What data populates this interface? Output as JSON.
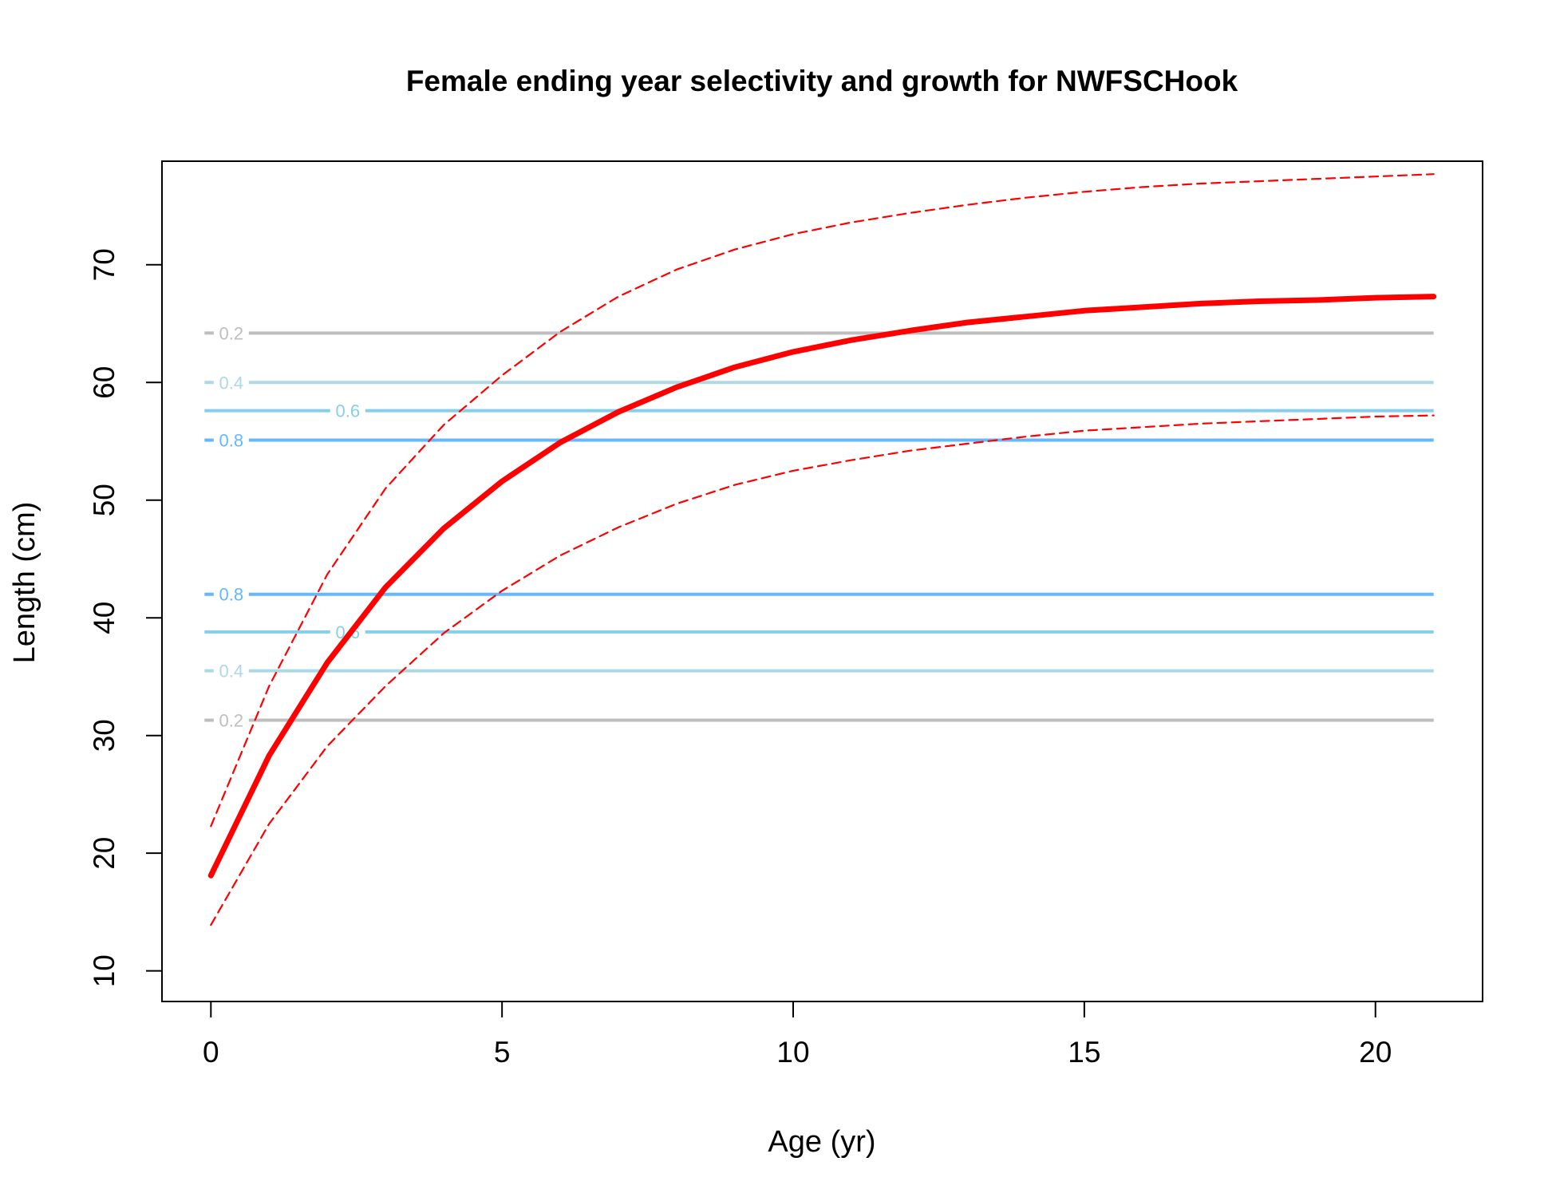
{
  "chart_data": {
    "type": "line",
    "title": "Female ending year selectivity and growth for NWFSCHook",
    "xlabel": "Age (yr)",
    "ylabel": "Length (cm)",
    "xlim": [
      -0.84,
      21.84
    ],
    "ylim": [
      7.4,
      78.8
    ],
    "xticks": [
      0,
      5,
      10,
      15,
      20
    ],
    "yticks": [
      10,
      20,
      30,
      40,
      50,
      60,
      70
    ],
    "grid": false,
    "legend": "none",
    "series": [
      {
        "role": "mean",
        "color": "#ff0000",
        "style": "solid-thick",
        "x": [
          0,
          1,
          2,
          3,
          4,
          5,
          6,
          7,
          8,
          9,
          10,
          11,
          12,
          13,
          14,
          15,
          16,
          17,
          18,
          19,
          20,
          21
        ],
        "values": [
          18.1,
          28.3,
          36.2,
          42.6,
          47.6,
          51.6,
          54.9,
          57.5,
          59.6,
          61.3,
          62.6,
          63.6,
          64.4,
          65.1,
          65.6,
          66.1,
          66.4,
          66.7,
          66.9,
          67.0,
          67.2,
          67.3
        ]
      },
      {
        "role": "upper",
        "color": "#ff0000",
        "style": "dashed",
        "x": [
          0,
          1,
          2,
          3,
          4,
          5,
          6,
          7,
          8,
          9,
          10,
          11,
          12,
          13,
          14,
          15,
          16,
          17,
          18,
          19,
          20,
          21
        ],
        "values": [
          22.3,
          34.2,
          43.7,
          51.0,
          56.4,
          60.6,
          64.3,
          67.3,
          69.6,
          71.3,
          72.6,
          73.6,
          74.4,
          75.1,
          75.7,
          76.2,
          76.6,
          76.9,
          77.1,
          77.3,
          77.5,
          77.7
        ]
      },
      {
        "role": "lower",
        "color": "#ff0000",
        "style": "dashed",
        "x": [
          0,
          1,
          2,
          3,
          4,
          5,
          6,
          7,
          8,
          9,
          10,
          11,
          12,
          13,
          14,
          15,
          16,
          17,
          18,
          19,
          20,
          21
        ],
        "values": [
          13.9,
          22.5,
          29.1,
          34.2,
          38.7,
          42.3,
          45.3,
          47.7,
          49.7,
          51.3,
          52.5,
          53.4,
          54.2,
          54.8,
          55.4,
          55.9,
          56.2,
          56.5,
          56.7,
          56.9,
          57.1,
          57.2
        ]
      }
    ],
    "selectivity_contours": [
      {
        "label": "0.2",
        "y": 64.2,
        "color": "#bebebe",
        "label_x": 0.35
      },
      {
        "label": "0.4",
        "y": 60.0,
        "color": "#add8e6",
        "label_x": 0.35
      },
      {
        "label": "0.6",
        "y": 57.6,
        "color": "#87ceeb",
        "label_x": 2.35
      },
      {
        "label": "0.8",
        "y": 55.1,
        "color": "#63b8ff",
        "label_x": 0.35
      },
      {
        "label": "0.8",
        "y": 42.0,
        "color": "#63b8ff",
        "label_x": 0.35
      },
      {
        "label": "0.6",
        "y": 38.8,
        "color": "#87ceeb",
        "label_x": 2.35
      },
      {
        "label": "0.4",
        "y": 35.5,
        "color": "#add8e6",
        "label_x": 0.35
      },
      {
        "label": "0.2",
        "y": 31.3,
        "color": "#bebebe",
        "label_x": 0.35
      }
    ]
  }
}
